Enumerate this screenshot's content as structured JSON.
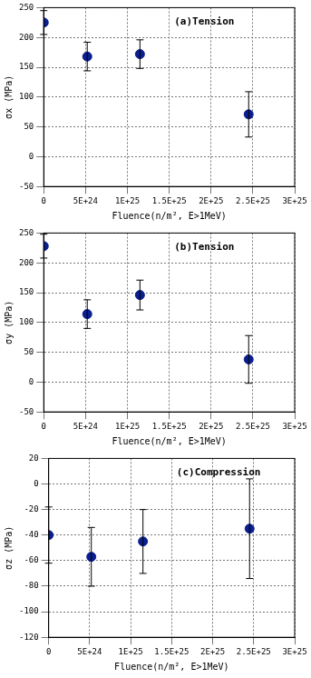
{
  "chart_data": [
    {
      "type": "scatter",
      "annotation": "(a)Tension",
      "xlabel": "Fluence(n/m², E>1MeV)",
      "ylabel": "σx (MPa)",
      "x": [
        0,
        5.2e+24,
        1.15e+25,
        2.45e+25
      ],
      "values": [
        225,
        168,
        172,
        71
      ],
      "errors": [
        20,
        24,
        24,
        38
      ],
      "color": "#0a1f8f",
      "marker": "circle",
      "grid": true,
      "xlim": [
        0,
        3e+25
      ],
      "xticks": [
        0,
        {
          "value": 5e+24,
          "label": "5E+24"
        },
        {
          "value": 1e+25,
          "label": "1E+25"
        },
        {
          "value": 1.5e+25,
          "label": "1.5E+25"
        },
        {
          "value": 2e+25,
          "label": "2E+25"
        },
        {
          "value": 2.5e+25,
          "label": "2.5E+25"
        },
        {
          "value": 3e+25,
          "label": "3E+25"
        }
      ],
      "ylim": [
        -50,
        250
      ],
      "yticks": [
        -50,
        0,
        50,
        100,
        150,
        200,
        250
      ]
    },
    {
      "type": "scatter",
      "annotation": "(b)Tension",
      "xlabel": "Fluence(n/m², E>1MeV)",
      "ylabel": "σy (MPa)",
      "x": [
        0,
        5.2e+24,
        1.15e+25,
        2.45e+25
      ],
      "values": [
        228,
        114,
        146,
        38
      ],
      "errors": [
        20,
        24,
        25,
        40
      ],
      "color": "#0a1f8f",
      "marker": "circle",
      "grid": true,
      "xlim": [
        0,
        3e+25
      ],
      "xticks": [
        0,
        {
          "value": 5e+24,
          "label": "5E+24"
        },
        {
          "value": 1e+25,
          "label": "1E+25"
        },
        {
          "value": 1.5e+25,
          "label": "1.5E+25"
        },
        {
          "value": 2e+25,
          "label": "2E+25"
        },
        {
          "value": 2.5e+25,
          "label": "2.5E+25"
        },
        {
          "value": 3e+25,
          "label": "3E+25"
        }
      ],
      "ylim": [
        -50,
        250
      ],
      "yticks": [
        -50,
        0,
        50,
        100,
        150,
        200,
        250
      ]
    },
    {
      "type": "scatter",
      "annotation": "(c)Compression",
      "xlabel": "Fluence(n/m², E>1MeV)",
      "ylabel": "σz (MPa)",
      "x": [
        0,
        5.2e+24,
        1.15e+25,
        2.45e+25
      ],
      "values": [
        -40,
        -57,
        -45,
        -35
      ],
      "errors": [
        22,
        23,
        25,
        39
      ],
      "color": "#0a1f8f",
      "marker": "circle",
      "grid": true,
      "xlim": [
        0,
        3e+25
      ],
      "xticks": [
        0,
        {
          "value": 5e+24,
          "label": "5E+24"
        },
        {
          "value": 1e+25,
          "label": "1E+25"
        },
        {
          "value": 1.5e+25,
          "label": "1.5E+25"
        },
        {
          "value": 2e+25,
          "label": "2E+25"
        },
        {
          "value": 2.5e+25,
          "label": "2.5E+25"
        },
        {
          "value": 3e+25,
          "label": "3E+25"
        }
      ],
      "ylim": [
        -120,
        20
      ],
      "yticks": [
        -120,
        -100,
        -80,
        -60,
        -40,
        -20,
        0,
        20
      ]
    }
  ]
}
